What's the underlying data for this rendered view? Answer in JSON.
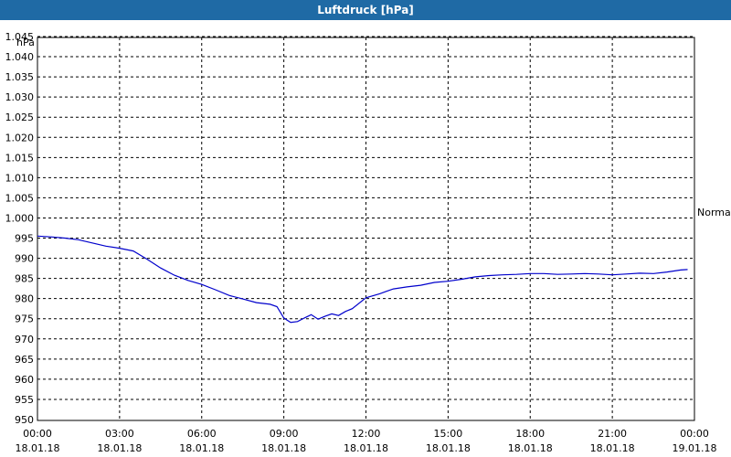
{
  "window": {
    "title": "Luftdruck [hPa]"
  },
  "chart_data": {
    "type": "line",
    "title": "Luftdruck [hPa]",
    "ylabel": "hPa",
    "ylim": [
      950,
      1045
    ],
    "yticks": [
      "950",
      "955",
      "960",
      "965",
      "970",
      "975",
      "980",
      "985",
      "990",
      "995",
      "1.000",
      "1.005",
      "1.010",
      "1.015",
      "1.020",
      "1.025",
      "1.030",
      "1.035",
      "1.040",
      "1.045"
    ],
    "xlim": [
      "18.01.18 00:00",
      "19.01.18 00:00"
    ],
    "xticks": [
      {
        "time": "00:00",
        "date": "18.01.18"
      },
      {
        "time": "03:00",
        "date": "18.01.18"
      },
      {
        "time": "06:00",
        "date": "18.01.18"
      },
      {
        "time": "09:00",
        "date": "18.01.18"
      },
      {
        "time": "12:00",
        "date": "18.01.18"
      },
      {
        "time": "15:00",
        "date": "18.01.18"
      },
      {
        "time": "18:00",
        "date": "18.01.18"
      },
      {
        "time": "21:00",
        "date": "18.01.18"
      },
      {
        "time": "00:00",
        "date": "19.01.18"
      }
    ],
    "grid": true,
    "annotation": "Normal",
    "series": [
      {
        "color": "#0000cc",
        "x": [
          "00:00",
          "00:30",
          "01:00",
          "01:30",
          "02:00",
          "02:30",
          "03:00",
          "03:30",
          "04:00",
          "04:30",
          "05:00",
          "05:30",
          "06:00",
          "06:30",
          "07:00",
          "07:30",
          "08:00",
          "08:30",
          "08:45",
          "09:00",
          "09:15",
          "09:30",
          "09:45",
          "10:00",
          "10:15",
          "10:30",
          "10:45",
          "11:00",
          "11:15",
          "11:30",
          "12:00",
          "12:30",
          "12:45",
          "13:00",
          "13:30",
          "14:00",
          "14:30",
          "15:00",
          "15:30",
          "16:00",
          "16:30",
          "17:00",
          "17:30",
          "18:00",
          "18:30",
          "19:00",
          "19:30",
          "20:00",
          "20:30",
          "21:00",
          "21:30",
          "22:00",
          "22:30",
          "23:00",
          "23:30",
          "23:45"
        ],
        "values": [
          995.5,
          995.3,
          995,
          994.6,
          993.8,
          993,
          992.5,
          991.8,
          989.8,
          987.6,
          985.8,
          984.5,
          983.5,
          982.2,
          980.8,
          979.9,
          979,
          978.6,
          978,
          975.2,
          974.1,
          974.3,
          975.2,
          976,
          974.9,
          975.6,
          976.2,
          975.8,
          976.8,
          977.5,
          980.2,
          981.2,
          981.8,
          982.4,
          982.9,
          983.3,
          984,
          984.3,
          984.8,
          985.4,
          985.7,
          985.9,
          986,
          986.2,
          986.2,
          986,
          986.1,
          986.2,
          986.1,
          985.9,
          986.1,
          986.3,
          986.2,
          986.6,
          987.1,
          987.2
        ]
      }
    ]
  }
}
